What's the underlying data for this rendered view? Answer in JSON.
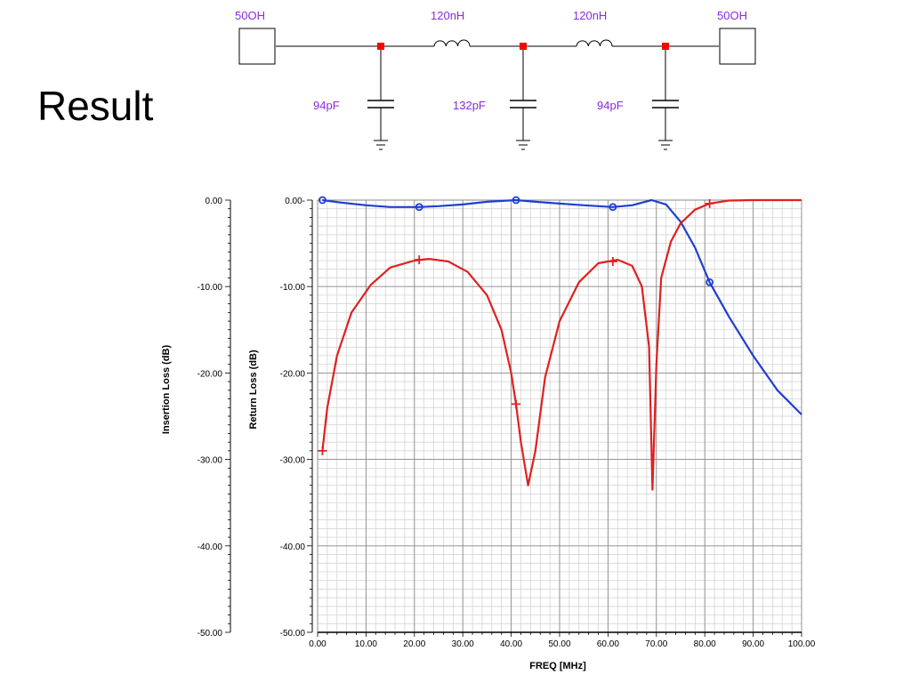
{
  "slide": {
    "title": "Result"
  },
  "schematic": {
    "port_left": "50OH",
    "port_right": "50OH",
    "inductor_1": "120nH",
    "inductor_2": "120nH",
    "cap_1": "94pF",
    "cap_2": "132pF",
    "cap_3": "94pF",
    "label_color": "#8a2be2",
    "node_color": "#ff0000"
  },
  "chart_data": {
    "type": "line",
    "xlabel": "FREQ [MHz]",
    "ylabel_left": "Insertion Loss (dB)",
    "ylabel_right": "Return Loss (dB)",
    "xlim": [
      0,
      100
    ],
    "ylim": [
      -50,
      0
    ],
    "x_ticks": [
      "0.00",
      "10.00",
      "20.00",
      "30.00",
      "40.00",
      "50.00",
      "60.00",
      "70.00",
      "80.00",
      "90.00",
      "100.00"
    ],
    "y_ticks_left": [
      "0.00",
      "-10.00",
      "-20.00",
      "-30.00",
      "-40.00",
      "-50.00"
    ],
    "y_ticks_right": [
      "0.00-",
      "-10.00",
      "-20.00",
      "-30.00",
      "-40.00",
      "-50.00"
    ],
    "grid": true,
    "series": [
      {
        "color": "#1f3fd0",
        "marker": "circle",
        "x": [
          1,
          5,
          10,
          15,
          21,
          25,
          30,
          35,
          41,
          45,
          50,
          55,
          61,
          65,
          69,
          72,
          75,
          78,
          81,
          85,
          90,
          95,
          100
        ],
        "y": [
          0,
          -0.3,
          -0.6,
          -0.8,
          -0.8,
          -0.7,
          -0.5,
          -0.2,
          0,
          -0.2,
          -0.4,
          -0.6,
          -0.8,
          -0.6,
          0,
          -0.5,
          -2.5,
          -5.5,
          -9.5,
          -13.5,
          -18,
          -22,
          -24.8
        ],
        "markers": [
          [
            1,
            0
          ],
          [
            21,
            -0.8
          ],
          [
            41,
            0
          ],
          [
            61,
            -0.8
          ],
          [
            81,
            -9.5
          ]
        ]
      },
      {
        "color": "#e02020",
        "marker": "plus",
        "x": [
          1,
          2,
          4,
          7,
          11,
          15,
          20,
          23,
          27,
          31,
          35,
          38,
          40,
          41,
          42,
          43.5,
          45,
          47,
          50,
          54,
          58,
          62,
          65,
          67,
          68.5,
          69.2,
          70,
          71,
          73,
          75,
          78,
          81,
          85,
          90,
          100
        ],
        "y": [
          -29,
          -24,
          -18,
          -13,
          -9.8,
          -7.8,
          -7,
          -6.8,
          -7.1,
          -8.3,
          -11,
          -15,
          -20,
          -23.6,
          -28,
          -33,
          -29,
          -20.5,
          -14,
          -9.5,
          -7.3,
          -6.9,
          -7.6,
          -10,
          -17,
          -33.5,
          -19,
          -9,
          -4.8,
          -2.7,
          -1.1,
          -0.4,
          -0.05,
          0,
          0
        ],
        "markers": [
          [
            1,
            -29
          ],
          [
            21,
            -6.9
          ],
          [
            41,
            -23.6
          ],
          [
            61,
            -7.1
          ],
          [
            81,
            -0.4
          ]
        ]
      }
    ]
  }
}
